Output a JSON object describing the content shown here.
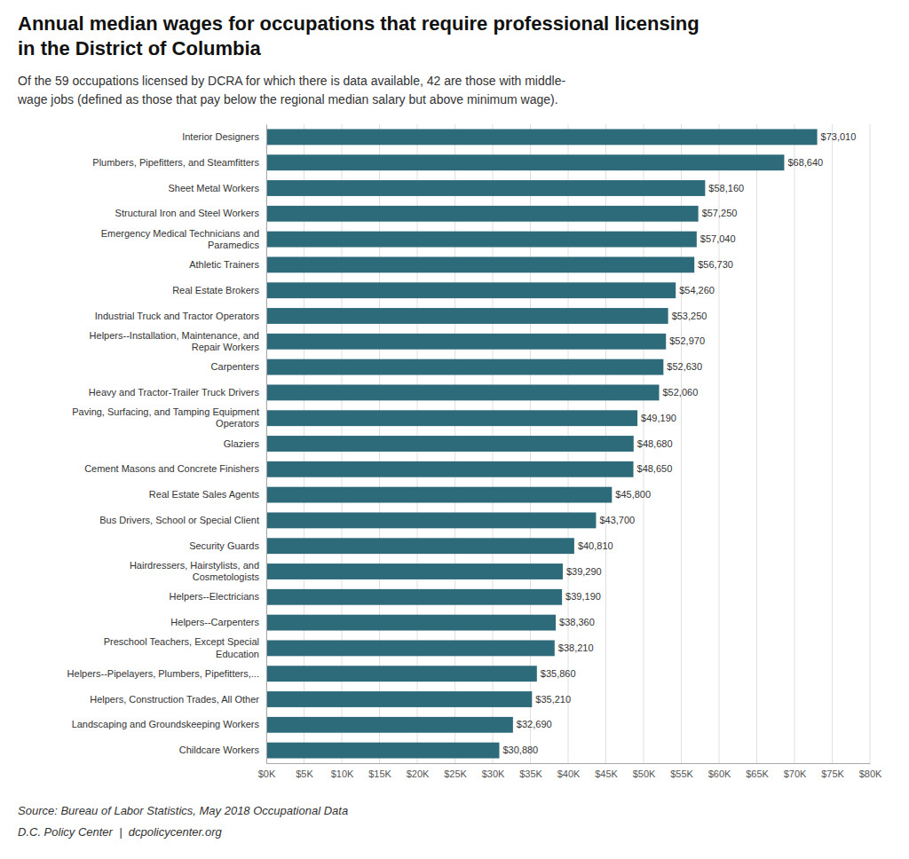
{
  "chart_data": {
    "type": "bar",
    "orientation": "horizontal",
    "title": "Annual median wages for occupations that require professional licensing\nin the District of Columbia",
    "subtitle": "Of the 59 occupations licensed by DCRA for which there is data available, 42 are those with middle-\nwage jobs (defined as those that pay below the regional median salary but above minimum wage).",
    "annotations": [
      "Source: Bureau of Labor Statistics, May 2018 Occupational Data",
      "D.C. Policy Center  |  dcpolicycenter.org"
    ],
    "categories": [
      "Interior Designers",
      "Plumbers, Pipefitters, and Steamfitters",
      "Sheet Metal Workers",
      "Structural Iron and Steel Workers",
      "Emergency Medical Technicians and\nParamedics",
      "Athletic Trainers",
      "Real Estate Brokers",
      "Industrial Truck and Tractor Operators",
      "Helpers--Installation, Maintenance, and\nRepair Workers",
      "Carpenters",
      "Heavy and Tractor-Trailer Truck Drivers",
      "Paving, Surfacing, and Tamping Equipment\nOperators",
      "Glaziers",
      "Cement Masons and Concrete Finishers",
      "Real Estate Sales Agents",
      "Bus Drivers, School or Special Client",
      "Security Guards",
      "Hairdressers, Hairstylists, and\nCosmetologists",
      "Helpers--Electricians",
      "Helpers--Carpenters",
      "Preschool Teachers, Except Special\nEducation",
      "Helpers--Pipelayers, Plumbers, Pipefitters,...",
      "Helpers, Construction Trades, All Other",
      "Landscaping and Groundskeeping Workers",
      "Childcare Workers"
    ],
    "values": [
      73010,
      68640,
      58160,
      57250,
      57040,
      56730,
      54260,
      53250,
      52970,
      52630,
      52060,
      49190,
      48680,
      48650,
      45800,
      43700,
      40810,
      39290,
      39190,
      38360,
      38210,
      35860,
      35210,
      32690,
      30880
    ],
    "value_labels": [
      "$73,010",
      "$68,640",
      "$58,160",
      "$57,250",
      "$57,040",
      "$56,730",
      "$54,260",
      "$53,250",
      "$52,970",
      "$52,630",
      "$52,060",
      "$49,190",
      "$48,680",
      "$48,650",
      "$45,800",
      "$43,700",
      "$40,810",
      "$39,290",
      "$39,190",
      "$38,360",
      "$38,210",
      "$35,860",
      "$35,210",
      "$32,690",
      "$30,880"
    ],
    "data_labels": true,
    "color": "#2e6b7a",
    "xlim": [
      0,
      80000
    ],
    "xticks": [
      {
        "value": 0,
        "label": "$0K"
      },
      {
        "value": 5000,
        "label": "$5K"
      },
      {
        "value": 10000,
        "label": "$10K"
      },
      {
        "value": 15000,
        "label": "$15K"
      },
      {
        "value": 20000,
        "label": "$20K"
      },
      {
        "value": 25000,
        "label": "$25K"
      },
      {
        "value": 30000,
        "label": "$30K"
      },
      {
        "value": 35000,
        "label": "$35K"
      },
      {
        "value": 40000,
        "label": "$40K"
      },
      {
        "value": 45000,
        "label": "$45K"
      },
      {
        "value": 50000,
        "label": "$50K"
      },
      {
        "value": 55000,
        "label": "$55K"
      },
      {
        "value": 60000,
        "label": "$60K"
      },
      {
        "value": 65000,
        "label": "$65K"
      },
      {
        "value": 70000,
        "label": "$70K"
      },
      {
        "value": 75000,
        "label": "$75K"
      },
      {
        "value": 80000,
        "label": "$80K"
      }
    ],
    "grid": true
  }
}
